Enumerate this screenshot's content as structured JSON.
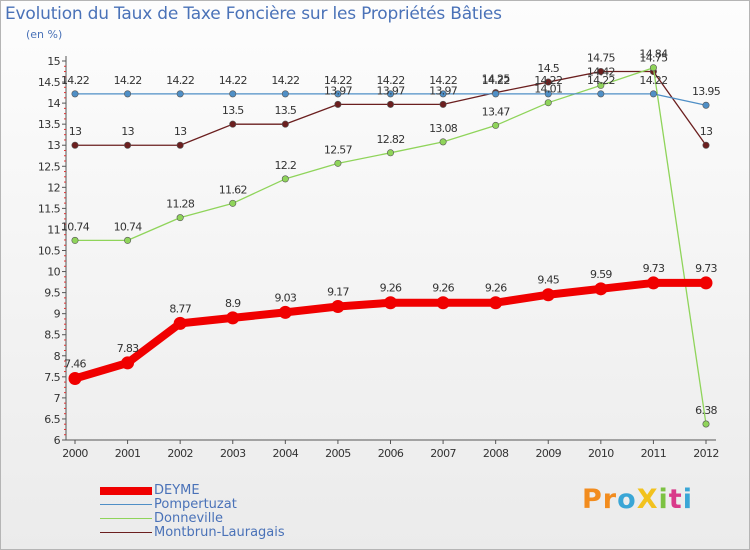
{
  "header": {
    "title": "Evolution du Taux de Taxe Foncière sur les Propriétés Bâties",
    "subtitle": "(en %)"
  },
  "logo": {
    "text": "ProXiti",
    "letter_colors": [
      "#f28c1e",
      "#f28c1e",
      "#3aa6d6",
      "#f2c21e",
      "#7cc242",
      "#d93a8a",
      "#3aa6d6"
    ]
  },
  "chart_data": {
    "type": "line",
    "title": "Evolution du Taux de Taxe Foncière sur les Propriétés Bâties",
    "subtitle": "(en %)",
    "x": [
      "2000",
      "2001",
      "2002",
      "2003",
      "2004",
      "2005",
      "2006",
      "2007",
      "2008",
      "2009",
      "2010",
      "2011",
      "2012"
    ],
    "ylim": [
      6,
      15
    ],
    "yticks": [
      "6",
      "6.5",
      "7",
      "7.5",
      "8",
      "8.5",
      "9",
      "9.5",
      "10",
      "10.5",
      "11",
      "11.5",
      "12",
      "12.5",
      "13",
      "13.5",
      "14",
      "14.5",
      "15"
    ],
    "grid": false,
    "legend_position": "bottom-left",
    "series": [
      {
        "name": "Montbrun-Lauragais",
        "color": "#6b1f1f",
        "values": [
          13,
          13,
          13,
          13.5,
          13.5,
          13.97,
          13.97,
          13.97,
          14.25,
          14.5,
          14.75,
          14.75,
          13
        ],
        "labels": [
          "13",
          "13",
          "13",
          "13.5",
          "13.5",
          "13.97",
          "13.97",
          "13.97",
          "14.25",
          "14.5",
          "14.75",
          "14.75",
          "13"
        ]
      },
      {
        "name": "Donneville",
        "color": "#8fd45a",
        "values": [
          10.74,
          10.74,
          11.28,
          11.62,
          12.2,
          12.57,
          12.82,
          13.08,
          13.47,
          14.01,
          14.42,
          14.84,
          6.38
        ],
        "labels": [
          "10.74",
          "10.74",
          "11.28",
          "11.62",
          "12.2",
          "12.57",
          "12.82",
          "13.08",
          "13.47",
          "14.01",
          "14.42",
          "14.84",
          "6.38"
        ]
      },
      {
        "name": "Pompertuzat",
        "color": "#4f8fc6",
        "values": [
          14.22,
          14.22,
          14.22,
          14.22,
          14.22,
          14.22,
          14.22,
          14.22,
          14.22,
          14.22,
          14.22,
          14.22,
          13.95
        ],
        "labels": [
          "14.22",
          "14.22",
          "14.22",
          "14.22",
          "14.22",
          "14.22",
          "14.22",
          "14.22",
          "14.22",
          "14.22",
          "14.22",
          "14.22",
          "13.95"
        ]
      },
      {
        "name": "DEYME",
        "color": "#f00000",
        "values": [
          7.46,
          7.83,
          8.77,
          8.9,
          9.03,
          9.17,
          9.26,
          9.26,
          9.26,
          9.45,
          9.59,
          9.73,
          9.73
        ],
        "labels": [
          "7.46",
          "7.83",
          "8.77",
          "8.9",
          "9.03",
          "9.17",
          "9.26",
          "9.26",
          "9.26",
          "9.45",
          "9.59",
          "9.73",
          "9.73"
        ]
      }
    ],
    "legend": [
      "DEYME",
      "Pompertuzat",
      "Donneville",
      "Montbrun-Lauragais"
    ]
  }
}
